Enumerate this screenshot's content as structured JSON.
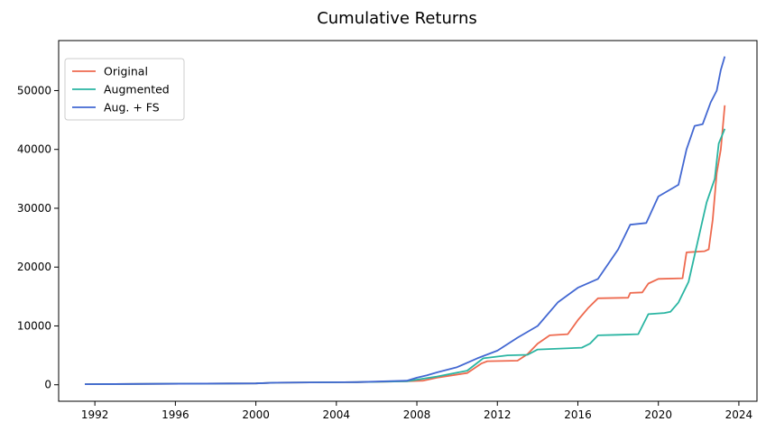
{
  "chart_data": {
    "type": "line",
    "title": "Cumulative Returns",
    "xlabel": "",
    "ylabel": "",
    "xlim": [
      1990.2,
      2024.9
    ],
    "ylim": [
      -2800,
      58500
    ],
    "x_ticks": [
      1992,
      1996,
      2000,
      2004,
      2008,
      2012,
      2016,
      2020,
      2024
    ],
    "y_ticks": [
      0,
      10000,
      20000,
      30000,
      40000,
      50000
    ],
    "grid": false,
    "legend": "top-left",
    "series": [
      {
        "name": "Original",
        "color": "#ee6a4f",
        "points": [
          [
            1991.5,
            100
          ],
          [
            1995,
            160
          ],
          [
            2000,
            230
          ],
          [
            2001,
            350
          ],
          [
            2005,
            450
          ],
          [
            2007.5,
            600
          ],
          [
            2008.3,
            700
          ],
          [
            2009,
            1200
          ],
          [
            2010.5,
            2000
          ],
          [
            2011.2,
            3600
          ],
          [
            2011.5,
            4000
          ],
          [
            2013,
            4100
          ],
          [
            2013.5,
            5200
          ],
          [
            2014,
            7000
          ],
          [
            2014.6,
            8400
          ],
          [
            2015.5,
            8600
          ],
          [
            2016,
            11000
          ],
          [
            2016.5,
            13000
          ],
          [
            2017,
            14700
          ],
          [
            2018.5,
            14800
          ],
          [
            2018.6,
            15600
          ],
          [
            2019.2,
            15700
          ],
          [
            2019.5,
            17200
          ],
          [
            2020,
            18000
          ],
          [
            2021.2,
            18100
          ],
          [
            2021.4,
            22500
          ],
          [
            2022.3,
            22700
          ],
          [
            2022.5,
            23000
          ],
          [
            2022.7,
            28000
          ],
          [
            2022.9,
            36000
          ],
          [
            2023.1,
            40000
          ],
          [
            2023.3,
            47500
          ]
        ]
      },
      {
        "name": "Augmented",
        "color": "#2ab5a2",
        "points": [
          [
            1991.5,
            100
          ],
          [
            1995,
            160
          ],
          [
            2000,
            230
          ],
          [
            2001,
            350
          ],
          [
            2005,
            450
          ],
          [
            2007.5,
            600
          ],
          [
            2009,
            1400
          ],
          [
            2010.5,
            2400
          ],
          [
            2011.3,
            4500
          ],
          [
            2012.5,
            5000
          ],
          [
            2013.5,
            5100
          ],
          [
            2014,
            6000
          ],
          [
            2016.2,
            6300
          ],
          [
            2016.6,
            7000
          ],
          [
            2017,
            8400
          ],
          [
            2018,
            8500
          ],
          [
            2019,
            8600
          ],
          [
            2019.5,
            12000
          ],
          [
            2020.3,
            12200
          ],
          [
            2020.6,
            12400
          ],
          [
            2021.0,
            14000
          ],
          [
            2021.5,
            17500
          ],
          [
            2022.0,
            25000
          ],
          [
            2022.4,
            31000
          ],
          [
            2022.8,
            35000
          ],
          [
            2023.0,
            41000
          ],
          [
            2023.3,
            43500
          ]
        ]
      },
      {
        "name": "Aug. + FS",
        "color": "#4368d2",
        "points": [
          [
            1991.5,
            100
          ],
          [
            1995,
            160
          ],
          [
            2000,
            230
          ],
          [
            2001,
            350
          ],
          [
            2005,
            450
          ],
          [
            2007.5,
            700
          ],
          [
            2008,
            1200
          ],
          [
            2008.5,
            1600
          ],
          [
            2009,
            2100
          ],
          [
            2010,
            3000
          ],
          [
            2011,
            4500
          ],
          [
            2012,
            5800
          ],
          [
            2013,
            8000
          ],
          [
            2014,
            10000
          ],
          [
            2015,
            14000
          ],
          [
            2016,
            16500
          ],
          [
            2017,
            18000
          ],
          [
            2018,
            23000
          ],
          [
            2018.6,
            27200
          ],
          [
            2019.4,
            27500
          ],
          [
            2020,
            32000
          ],
          [
            2020.5,
            33000
          ],
          [
            2021,
            34000
          ],
          [
            2021.4,
            40000
          ],
          [
            2021.8,
            44000
          ],
          [
            2022.2,
            44300
          ],
          [
            2022.6,
            48000
          ],
          [
            2022.9,
            50000
          ],
          [
            2023.1,
            53500
          ],
          [
            2023.3,
            55800
          ]
        ]
      }
    ]
  }
}
